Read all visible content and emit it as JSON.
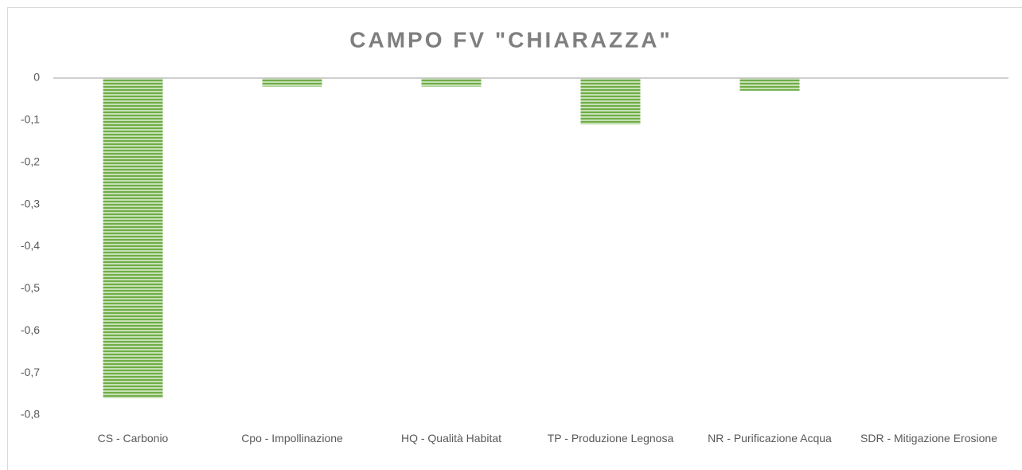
{
  "chart_data": {
    "type": "bar",
    "title": "CAMPO FV \"CHIARAZZA\"",
    "categories": [
      "CS - Carbonio",
      "Cpo - Impollinazione",
      "HQ - Qualità Habitat",
      "TP - Produzione Legnosa",
      "NR - Purificazione Acqua",
      "SDR - Mitigazione Erosione"
    ],
    "values": [
      -0.76,
      -0.02,
      -0.02,
      -0.11,
      -0.03,
      0
    ],
    "color": "#70ad47",
    "ylim": [
      -0.8,
      0
    ],
    "yticks": [
      {
        "value": 0,
        "label": "0"
      },
      {
        "value": -0.1,
        "label": "-0,1"
      },
      {
        "value": -0.2,
        "label": "-0,2"
      },
      {
        "value": -0.3,
        "label": "-0,3"
      },
      {
        "value": -0.4,
        "label": "-0,4"
      },
      {
        "value": -0.5,
        "label": "-0,5"
      },
      {
        "value": -0.6,
        "label": "-0,6"
      },
      {
        "value": -0.7,
        "label": "-0,7"
      },
      {
        "value": -0.8,
        "label": "-0,8"
      }
    ]
  }
}
